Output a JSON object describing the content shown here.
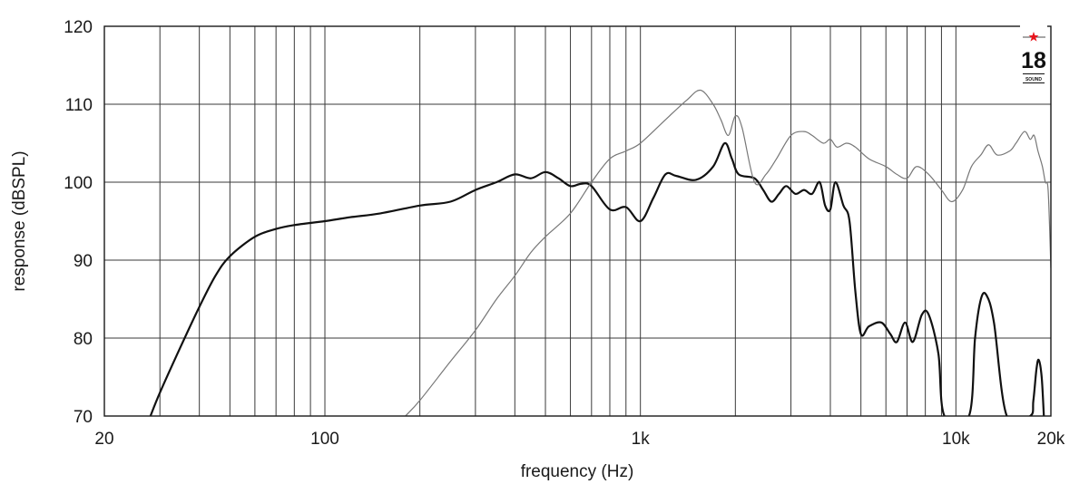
{
  "chart_data": {
    "type": "line",
    "xlabel": "frequency (Hz)",
    "ylabel": "response (dBSPL)",
    "x_scale": "log",
    "xlim": [
      20,
      20000
    ],
    "ylim": [
      70,
      120
    ],
    "x_ticks": [
      {
        "value": 20,
        "label": "20"
      },
      {
        "value": 100,
        "label": "100"
      },
      {
        "value": 1000,
        "label": "1k"
      },
      {
        "value": 10000,
        "label": "10k"
      },
      {
        "value": 20000,
        "label": "20k"
      }
    ],
    "y_ticks": [
      {
        "value": 70,
        "label": "70"
      },
      {
        "value": 80,
        "label": "80"
      },
      {
        "value": 90,
        "label": "90"
      },
      {
        "value": 100,
        "label": "100"
      },
      {
        "value": 110,
        "label": "110"
      },
      {
        "value": 120,
        "label": "120"
      }
    ],
    "x_gridlines": [
      30,
      40,
      50,
      60,
      70,
      80,
      90,
      100,
      200,
      300,
      400,
      500,
      600,
      700,
      800,
      900,
      1000,
      2000,
      3000,
      4000,
      5000,
      6000,
      7000,
      8000,
      9000,
      10000
    ],
    "y_gridlines": [
      80,
      90,
      100,
      110
    ],
    "grid": true,
    "legend": "none",
    "logo": {
      "text": "18",
      "small_text": "SOUND",
      "star_color": "#e8141c"
    },
    "series": [
      {
        "color": "#111111",
        "width": 2.2,
        "points": [
          [
            28,
            70
          ],
          [
            30,
            73
          ],
          [
            35,
            79
          ],
          [
            40,
            84
          ],
          [
            45,
            88
          ],
          [
            50,
            90.5
          ],
          [
            60,
            93
          ],
          [
            70,
            94
          ],
          [
            80,
            94.5
          ],
          [
            100,
            95
          ],
          [
            120,
            95.5
          ],
          [
            150,
            96
          ],
          [
            200,
            97
          ],
          [
            250,
            97.5
          ],
          [
            300,
            99
          ],
          [
            350,
            100
          ],
          [
            400,
            101
          ],
          [
            450,
            100.5
          ],
          [
            500,
            101.3
          ],
          [
            550,
            100.5
          ],
          [
            600,
            99.5
          ],
          [
            650,
            99.8
          ],
          [
            700,
            99.5
          ],
          [
            800,
            96.5
          ],
          [
            900,
            96.8
          ],
          [
            1000,
            95
          ],
          [
            1100,
            98
          ],
          [
            1200,
            101
          ],
          [
            1300,
            100.8
          ],
          [
            1500,
            100.3
          ],
          [
            1700,
            102
          ],
          [
            1850,
            105
          ],
          [
            1950,
            103
          ],
          [
            2050,
            101
          ],
          [
            2300,
            100.5
          ],
          [
            2450,
            99
          ],
          [
            2600,
            97.5
          ],
          [
            2750,
            98.5
          ],
          [
            2900,
            99.5
          ],
          [
            3100,
            98.5
          ],
          [
            3300,
            99
          ],
          [
            3500,
            98.5
          ],
          [
            3700,
            100
          ],
          [
            3850,
            97
          ],
          [
            4000,
            96.5
          ],
          [
            4150,
            100
          ],
          [
            4400,
            97
          ],
          [
            4600,
            95
          ],
          [
            4800,
            86
          ],
          [
            5000,
            80.5
          ],
          [
            5300,
            81.5
          ],
          [
            5800,
            82
          ],
          [
            6200,
            80.5
          ],
          [
            6500,
            79.5
          ],
          [
            6900,
            82
          ],
          [
            7300,
            79.5
          ],
          [
            7800,
            83
          ],
          [
            8200,
            83
          ],
          [
            8800,
            78
          ],
          [
            9200,
            70
          ],
          [
            11000,
            70
          ],
          [
            11500,
            80
          ],
          [
            12000,
            85
          ],
          [
            12500,
            85.5
          ],
          [
            13200,
            82
          ],
          [
            14500,
            70
          ],
          [
            17200,
            70
          ],
          [
            17600,
            72
          ],
          [
            18000,
            76
          ],
          [
            18300,
            77.2
          ],
          [
            18700,
            75
          ],
          [
            19000,
            70
          ]
        ]
      },
      {
        "color": "#777777",
        "width": 1.2,
        "points": [
          [
            180,
            70
          ],
          [
            200,
            72
          ],
          [
            250,
            77
          ],
          [
            300,
            81
          ],
          [
            350,
            85
          ],
          [
            400,
            88
          ],
          [
            450,
            91
          ],
          [
            500,
            93
          ],
          [
            600,
            96
          ],
          [
            700,
            100
          ],
          [
            800,
            103
          ],
          [
            900,
            104
          ],
          [
            1000,
            105
          ],
          [
            1200,
            108
          ],
          [
            1400,
            110.5
          ],
          [
            1550,
            111.8
          ],
          [
            1700,
            110
          ],
          [
            1800,
            108
          ],
          [
            1900,
            106
          ],
          [
            2000,
            108.5
          ],
          [
            2100,
            107
          ],
          [
            2300,
            100
          ],
          [
            2500,
            101
          ],
          [
            2700,
            103
          ],
          [
            3000,
            106
          ],
          [
            3300,
            106.5
          ],
          [
            3500,
            106
          ],
          [
            3800,
            105
          ],
          [
            4000,
            105.5
          ],
          [
            4200,
            104.5
          ],
          [
            4500,
            105
          ],
          [
            4800,
            104.5
          ],
          [
            5300,
            103
          ],
          [
            6000,
            102
          ],
          [
            6500,
            101
          ],
          [
            7000,
            100.5
          ],
          [
            7500,
            102
          ],
          [
            8200,
            101
          ],
          [
            9000,
            99
          ],
          [
            9700,
            97.5
          ],
          [
            10500,
            99
          ],
          [
            11200,
            102
          ],
          [
            12000,
            103.5
          ],
          [
            12700,
            104.8
          ],
          [
            13500,
            103.5
          ],
          [
            14800,
            104
          ],
          [
            15500,
            105
          ],
          [
            16500,
            106.5
          ],
          [
            17200,
            105.5
          ],
          [
            17700,
            106
          ],
          [
            18200,
            104
          ],
          [
            18800,
            102
          ],
          [
            19200,
            100
          ],
          [
            19600,
            99
          ],
          [
            20000,
            89
          ]
        ]
      }
    ]
  }
}
